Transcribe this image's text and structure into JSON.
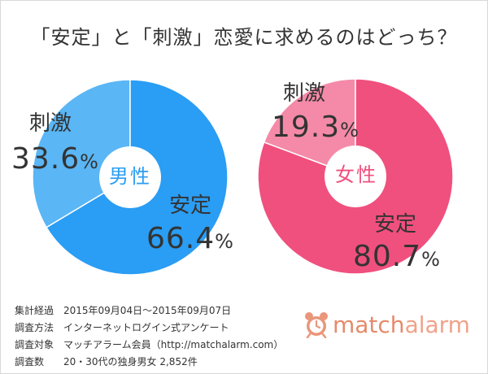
{
  "title": "「安定」と「刺激」恋愛に求めるのはどっち？",
  "chart_data": [
    {
      "type": "pie",
      "center_label": "男性",
      "slices": [
        {
          "label": "刺激",
          "value": 33.6,
          "display": "33.6",
          "color": "#5ab6f5"
        },
        {
          "label": "安定",
          "value": 66.4,
          "display": "66.4",
          "color": "#2a9df4"
        }
      ],
      "center_color": "#2a9df4"
    },
    {
      "type": "pie",
      "center_label": "女性",
      "slices": [
        {
          "label": "刺激",
          "value": 19.3,
          "display": "19.3",
          "color": "#f48aa8"
        },
        {
          "label": "安定",
          "value": 80.7,
          "display": "80.7",
          "color": "#f0507e"
        }
      ],
      "center_color": "#f0507e"
    }
  ],
  "percent_sign": "%",
  "survey": [
    {
      "key": "集計経過",
      "value": "2015年09月04日～2015年09月07日"
    },
    {
      "key": "調査方法",
      "value": "インターネットログイン式アンケート"
    },
    {
      "key": "調査対象",
      "value": "マッチアラーム会員（http://matchalarm.com）"
    },
    {
      "key": "調査数",
      "value": "20・30代の独身男女 2,852件"
    }
  ],
  "brand": {
    "part1": "match",
    "part2": "alarm",
    "icon": "alarm-clock-icon",
    "color": "#e9967a"
  }
}
